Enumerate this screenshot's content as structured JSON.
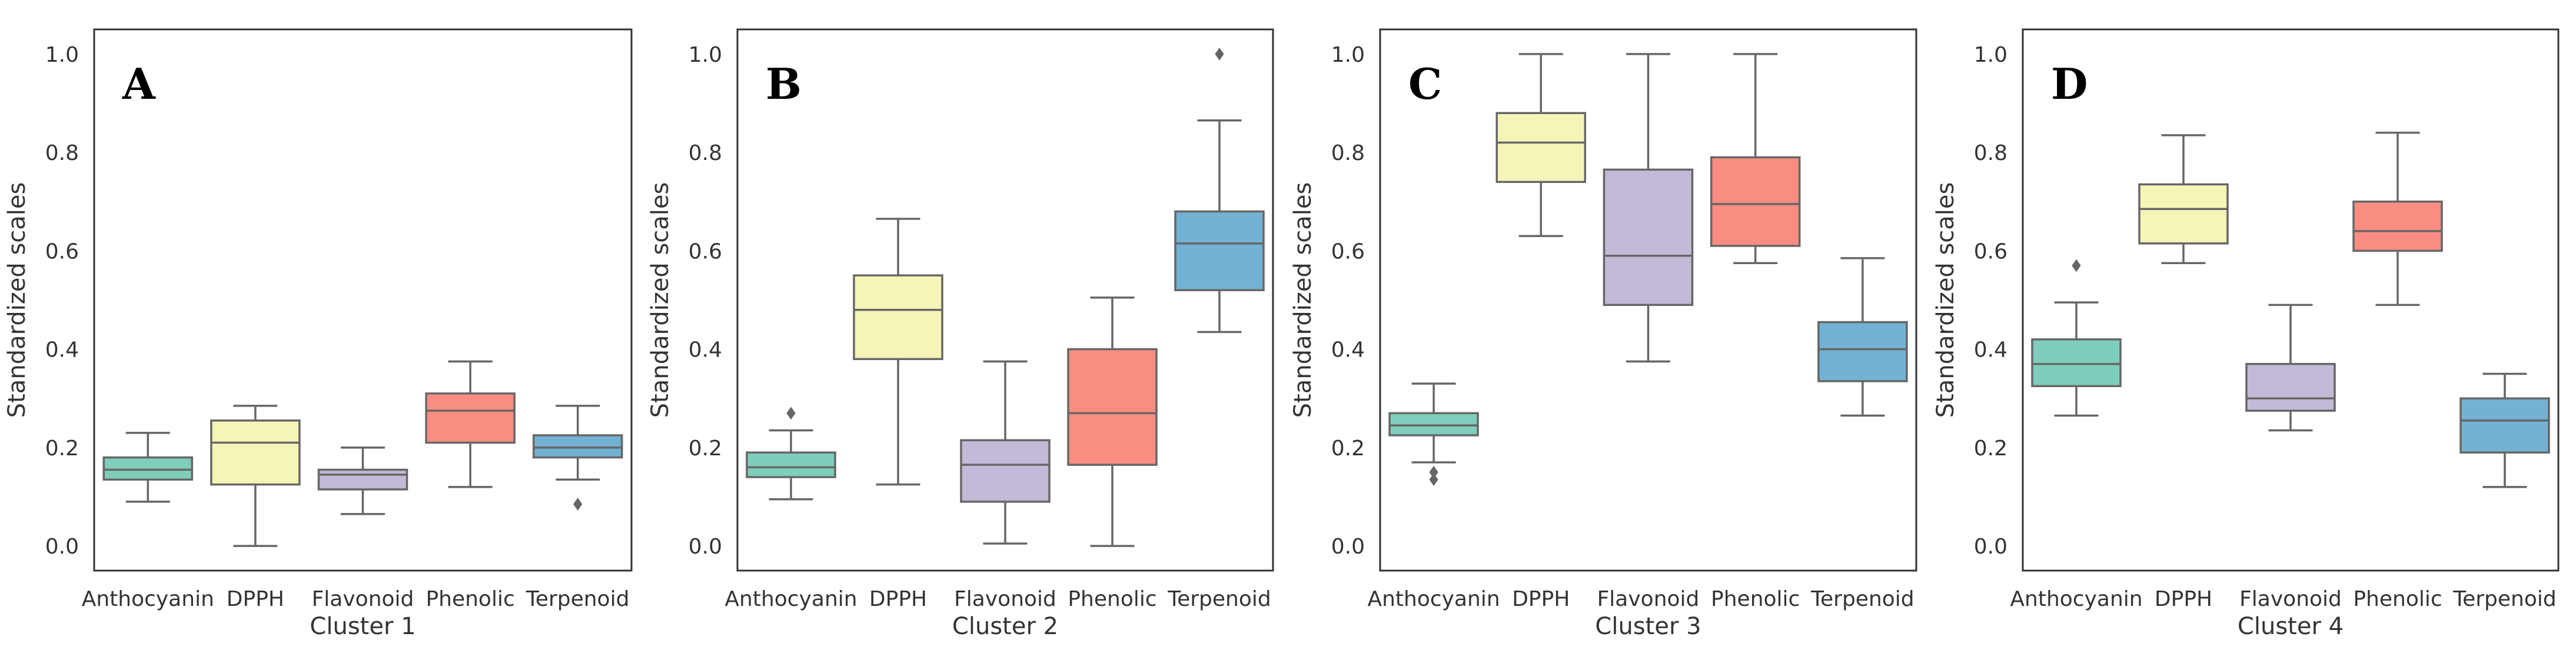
{
  "figure": {
    "ylabel": "Standardized scales",
    "yticks": [
      "0.0",
      "0.2",
      "0.4",
      "0.6",
      "0.8",
      "1.0"
    ],
    "palette": [
      "#7fcdbb",
      "#f6f5b8",
      "#c3bad8",
      "#fa8d82",
      "#73b2d2"
    ]
  },
  "chart_data": [
    {
      "type": "box",
      "panel": "A",
      "title": "",
      "xlabel": "Cluster 1",
      "ylabel": "Standardized scales",
      "ylim": [
        -0.05,
        1.05
      ],
      "categories": [
        "Anthocyanin",
        "DPPH",
        "Flavonoid",
        "Phenolic",
        "Terpenoid"
      ],
      "boxes": [
        {
          "min": 0.09,
          "q1": 0.135,
          "median": 0.155,
          "q3": 0.18,
          "max": 0.23,
          "outliers": []
        },
        {
          "min": 0.0,
          "q1": 0.125,
          "median": 0.21,
          "q3": 0.255,
          "max": 0.285,
          "outliers": []
        },
        {
          "min": 0.065,
          "q1": 0.115,
          "median": 0.145,
          "q3": 0.155,
          "max": 0.2,
          "outliers": []
        },
        {
          "min": 0.12,
          "q1": 0.21,
          "median": 0.275,
          "q3": 0.31,
          "max": 0.375,
          "outliers": []
        },
        {
          "min": 0.135,
          "q1": 0.18,
          "median": 0.2,
          "q3": 0.225,
          "max": 0.285,
          "outliers": [
            0.085
          ]
        }
      ]
    },
    {
      "type": "box",
      "panel": "B",
      "title": "",
      "xlabel": "Cluster 2",
      "ylabel": "Standardized scales",
      "ylim": [
        -0.05,
        1.05
      ],
      "categories": [
        "Anthocyanin",
        "DPPH",
        "Flavonoid",
        "Phenolic",
        "Terpenoid"
      ],
      "boxes": [
        {
          "min": 0.095,
          "q1": 0.14,
          "median": 0.16,
          "q3": 0.19,
          "max": 0.235,
          "outliers": [
            0.27
          ]
        },
        {
          "min": 0.125,
          "q1": 0.38,
          "median": 0.48,
          "q3": 0.55,
          "max": 0.665,
          "outliers": []
        },
        {
          "min": 0.005,
          "q1": 0.09,
          "median": 0.165,
          "q3": 0.215,
          "max": 0.375,
          "outliers": []
        },
        {
          "min": 0.0,
          "q1": 0.165,
          "median": 0.27,
          "q3": 0.4,
          "max": 0.505,
          "outliers": []
        },
        {
          "min": 0.435,
          "q1": 0.52,
          "median": 0.615,
          "q3": 0.68,
          "max": 0.865,
          "outliers": [
            1.0
          ]
        }
      ]
    },
    {
      "type": "box",
      "panel": "C",
      "title": "",
      "xlabel": "Cluster 3",
      "ylabel": "Standardized scales",
      "ylim": [
        -0.05,
        1.05
      ],
      "categories": [
        "Anthocyanin",
        "DPPH",
        "Flavonoid",
        "Phenolic",
        "Terpenoid"
      ],
      "boxes": [
        {
          "min": 0.17,
          "q1": 0.225,
          "median": 0.245,
          "q3": 0.27,
          "max": 0.33,
          "outliers": [
            0.15,
            0.135
          ]
        },
        {
          "min": 0.63,
          "q1": 0.74,
          "median": 0.82,
          "q3": 0.88,
          "max": 1.0,
          "outliers": []
        },
        {
          "min": 0.375,
          "q1": 0.49,
          "median": 0.59,
          "q3": 0.765,
          "max": 1.0,
          "outliers": []
        },
        {
          "min": 0.575,
          "q1": 0.61,
          "median": 0.695,
          "q3": 0.79,
          "max": 1.0,
          "outliers": []
        },
        {
          "min": 0.265,
          "q1": 0.335,
          "median": 0.4,
          "q3": 0.455,
          "max": 0.585,
          "outliers": []
        }
      ]
    },
    {
      "type": "box",
      "panel": "D",
      "title": "",
      "xlabel": "Cluster 4",
      "ylabel": "Standardized scales",
      "ylim": [
        -0.05,
        1.05
      ],
      "categories": [
        "Anthocyanin",
        "DPPH",
        "Flavonoid",
        "Phenolic",
        "Terpenoid"
      ],
      "boxes": [
        {
          "min": 0.265,
          "q1": 0.325,
          "median": 0.37,
          "q3": 0.42,
          "max": 0.495,
          "outliers": [
            0.57
          ]
        },
        {
          "min": 0.575,
          "q1": 0.615,
          "median": 0.685,
          "q3": 0.735,
          "max": 0.835,
          "outliers": []
        },
        {
          "min": 0.235,
          "q1": 0.275,
          "median": 0.3,
          "q3": 0.37,
          "max": 0.49,
          "outliers": []
        },
        {
          "min": 0.49,
          "q1": 0.6,
          "median": 0.64,
          "q3": 0.7,
          "max": 0.84,
          "outliers": []
        },
        {
          "min": 0.12,
          "q1": 0.19,
          "median": 0.255,
          "q3": 0.3,
          "max": 0.35,
          "outliers": []
        }
      ]
    }
  ]
}
